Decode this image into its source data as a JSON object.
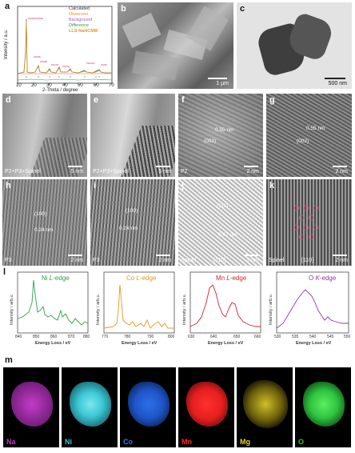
{
  "panel_labels": {
    "a": "a",
    "b": "b",
    "c": "c",
    "d": "d",
    "e": "e",
    "f": "f",
    "g": "g",
    "h": "h",
    "i": "i",
    "j": "j",
    "k": "k",
    "l": "l",
    "m": "m"
  },
  "xrd": {
    "legend": [
      "Calculated",
      "Observed",
      "Background",
      "Difference",
      "LLS-NaNCMM"
    ],
    "xlabel": "2-Theta / degree",
    "ylabel": "Intensity / a.u.",
    "xticks": [
      "10",
      "20",
      "30",
      "40",
      "50",
      "60",
      "70"
    ]
  },
  "sem_scale": "1 μm",
  "tem_scale": "500 nm",
  "hrtem": {
    "d": {
      "label": "P2+P3+Spinel",
      "scale": "5 nm"
    },
    "e": {
      "label": "P2+P3+Spinel",
      "scale": "5 nm"
    },
    "f": {
      "label": "P2",
      "scale": "2 nm",
      "ann1": "0.55 nm",
      "ann2": "(002)"
    },
    "g": {
      "scale": "2 nm",
      "ann1": "0.55 nm",
      "ann2": "(002)"
    },
    "h": {
      "label": "P3",
      "scale": "2 nm",
      "ann1": "(100)",
      "ann2": "0.24 nm"
    },
    "i": {
      "label": "P3",
      "scale": "2 nm",
      "ann1": "(100)",
      "ann2": "0.24 nm"
    },
    "j": {
      "label": "Spinel",
      "zone": "[110]",
      "scale": "2 nm",
      "ann1": "(111)",
      "ann2": "0.47 nm"
    },
    "k": {
      "label": "Spinel",
      "zone": "[110]",
      "scale": "2 nm"
    }
  },
  "eels": [
    {
      "title_el": "Ni",
      "title_edge": "L",
      "title_tail": "-edge",
      "color": "#2aa04a",
      "xlabel": "Energy Loss / eV",
      "ylabel": "Intensity / arb.u.",
      "xticks": [
        "840",
        "850",
        "860",
        "870",
        "880"
      ]
    },
    {
      "title_el": "Co",
      "title_edge": "L",
      "title_tail": "-edge",
      "color": "#e39a1a",
      "xlabel": "Energy Loss / eV",
      "ylabel": "Intensity / arb.u.",
      "xticks": [
        "770",
        "780",
        "790",
        "800"
      ]
    },
    {
      "title_el": "Mn",
      "title_edge": "L",
      "title_tail": "-edge",
      "color": "#d3203a",
      "xlabel": "Energy Loss / eV",
      "ylabel": "Intensity / arb.u.",
      "xticks": [
        "630",
        "640",
        "650",
        "660"
      ]
    },
    {
      "title_el": "O",
      "title_edge": "K",
      "title_tail": "-edge",
      "color": "#8a3aa8",
      "xlabel": "Energy Loss / eV",
      "ylabel": "Intensity / arb.u.",
      "xticks": [
        "530",
        "535",
        "540",
        "545",
        "550"
      ]
    }
  ],
  "maps": [
    {
      "el": "Na",
      "color": "#c23cc9"
    },
    {
      "el": "Ni",
      "color": "#3cc8d6"
    },
    {
      "el": "Co",
      "color": "#1f56c9"
    },
    {
      "el": "Mn",
      "color": "#e51e1e"
    },
    {
      "el": "Mg",
      "color": "#e6d42a"
    },
    {
      "el": "O",
      "color": "#2fc440"
    }
  ]
}
